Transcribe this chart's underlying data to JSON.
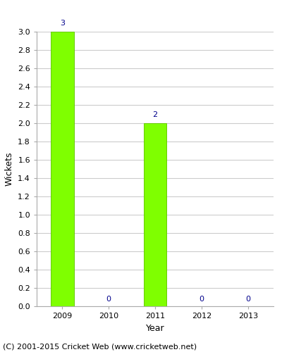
{
  "title": "",
  "xlabel": "Year",
  "ylabel": "Wickets",
  "categories": [
    "2009",
    "2010",
    "2011",
    "2012",
    "2013"
  ],
  "values": [
    3,
    0,
    2,
    0,
    0
  ],
  "bar_color": "#7fff00",
  "bar_edge_color": "#66cc00",
  "label_color": "#00008b",
  "ylim": [
    0,
    3.0
  ],
  "grid_color": "#cccccc",
  "bg_color": "#ffffff",
  "footer_text": "(C) 2001-2015 Cricket Web (www.cricketweb.net)",
  "footer_fontsize": 8,
  "axis_label_fontsize": 9,
  "tick_label_fontsize": 8,
  "value_label_fontsize": 8
}
